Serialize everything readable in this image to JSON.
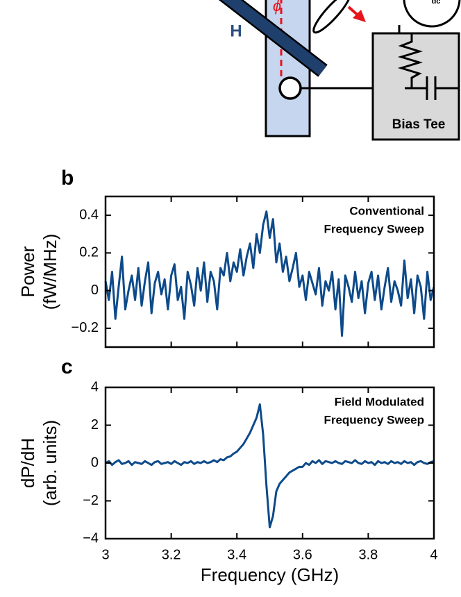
{
  "diagram": {
    "field_label": "H",
    "angle_label": "ϕ",
    "box_label": "Bias Tee",
    "source_label": "dc"
  },
  "chart_data": [
    {
      "type": "line",
      "panel": "b",
      "ylabel": [
        "Power",
        "(fW/MHz)"
      ],
      "annotation": [
        "Conventional",
        "Frequency Sweep"
      ],
      "xlim": [
        3,
        4
      ],
      "xticks": [
        3,
        3.2,
        3.4,
        3.6,
        3.8,
        4
      ],
      "ylim": [
        -0.3,
        0.5
      ],
      "yticks": [
        {
          "value": -0.2,
          "label": "−0.2"
        },
        0,
        0.2,
        0.4
      ],
      "x": [
        3.0,
        3.01,
        3.02,
        3.03,
        3.04,
        3.05,
        3.06,
        3.07,
        3.08,
        3.09,
        3.1,
        3.11,
        3.12,
        3.13,
        3.14,
        3.15,
        3.16,
        3.17,
        3.18,
        3.19,
        3.2,
        3.21,
        3.22,
        3.23,
        3.24,
        3.25,
        3.26,
        3.27,
        3.28,
        3.29,
        3.3,
        3.31,
        3.32,
        3.33,
        3.34,
        3.35,
        3.36,
        3.37,
        3.38,
        3.39,
        3.4,
        3.41,
        3.42,
        3.43,
        3.44,
        3.45,
        3.46,
        3.47,
        3.48,
        3.49,
        3.5,
        3.51,
        3.52,
        3.53,
        3.54,
        3.55,
        3.56,
        3.57,
        3.58,
        3.59,
        3.6,
        3.61,
        3.62,
        3.63,
        3.64,
        3.65,
        3.66,
        3.67,
        3.68,
        3.69,
        3.7,
        3.71,
        3.72,
        3.73,
        3.74,
        3.75,
        3.76,
        3.77,
        3.78,
        3.79,
        3.8,
        3.81,
        3.82,
        3.83,
        3.84,
        3.85,
        3.86,
        3.87,
        3.88,
        3.89,
        3.9,
        3.91,
        3.92,
        3.93,
        3.94,
        3.95,
        3.96,
        3.97,
        3.98,
        3.99,
        4.0
      ],
      "series": [
        {
          "color": "#0d4a8a",
          "values": [
            0.05,
            -0.05,
            0.1,
            -0.15,
            0.02,
            0.18,
            -0.1,
            0.0,
            0.08,
            -0.05,
            0.12,
            -0.08,
            0.05,
            0.15,
            -0.12,
            0.04,
            0.1,
            -0.02,
            0.06,
            -0.1,
            0.08,
            0.14,
            -0.05,
            0.02,
            -0.15,
            0.1,
            0.03,
            -0.08,
            0.12,
            0.0,
            0.15,
            -0.06,
            0.1,
            0.05,
            -0.1,
            0.12,
            0.08,
            0.2,
            0.05,
            0.15,
            0.1,
            0.22,
            0.08,
            0.18,
            0.25,
            0.12,
            0.3,
            0.2,
            0.35,
            0.42,
            0.28,
            0.38,
            0.15,
            0.25,
            0.1,
            0.18,
            0.05,
            0.12,
            0.2,
            0.02,
            0.08,
            -0.05,
            0.1,
            0.04,
            -0.02,
            0.12,
            -0.08,
            0.05,
            0.0,
            0.1,
            -0.1,
            0.06,
            -0.24,
            0.08,
            0.02,
            -0.06,
            0.1,
            -0.04,
            0.05,
            -0.12,
            0.04,
            0.1,
            -0.05,
            0.08,
            -0.1,
            0.02,
            0.12,
            -0.06,
            0.05,
            0.0,
            -0.08,
            0.16,
            -0.04,
            0.06,
            -0.12,
            0.08,
            0.02,
            -0.15,
            0.1,
            -0.05,
            0.02
          ]
        }
      ]
    },
    {
      "type": "line",
      "panel": "c",
      "ylabel": [
        "dP/dH",
        "(arb. units)"
      ],
      "xlabel": "Frequency (GHz)",
      "annotation": [
        "Field Modulated",
        "Frequency Sweep"
      ],
      "xlim": [
        3,
        4
      ],
      "xticks": [
        3,
        3.2,
        3.4,
        3.6,
        3.8,
        4
      ],
      "ylim": [
        -4,
        4
      ],
      "yticks": [
        {
          "value": -4,
          "label": "−4"
        },
        {
          "value": -2,
          "label": "−2"
        },
        0,
        2,
        4
      ],
      "x": [
        3.0,
        3.01,
        3.02,
        3.03,
        3.04,
        3.05,
        3.06,
        3.07,
        3.08,
        3.09,
        3.1,
        3.11,
        3.12,
        3.13,
        3.14,
        3.15,
        3.16,
        3.17,
        3.18,
        3.19,
        3.2,
        3.21,
        3.22,
        3.23,
        3.24,
        3.25,
        3.26,
        3.27,
        3.28,
        3.29,
        3.3,
        3.31,
        3.32,
        3.33,
        3.34,
        3.35,
        3.36,
        3.37,
        3.38,
        3.39,
        3.4,
        3.41,
        3.42,
        3.43,
        3.44,
        3.45,
        3.46,
        3.47,
        3.48,
        3.49,
        3.5,
        3.51,
        3.52,
        3.53,
        3.54,
        3.55,
        3.56,
        3.57,
        3.58,
        3.59,
        3.6,
        3.61,
        3.62,
        3.63,
        3.64,
        3.65,
        3.66,
        3.67,
        3.68,
        3.69,
        3.7,
        3.71,
        3.72,
        3.73,
        3.74,
        3.75,
        3.76,
        3.77,
        3.78,
        3.79,
        3.8,
        3.81,
        3.82,
        3.83,
        3.84,
        3.85,
        3.86,
        3.87,
        3.88,
        3.89,
        3.9,
        3.91,
        3.92,
        3.93,
        3.94,
        3.95,
        3.96,
        3.97,
        3.98,
        3.99,
        4.0
      ],
      "series": [
        {
          "color": "#0d4a8a",
          "values": [
            0,
            0.1,
            -0.1,
            0.05,
            0.15,
            -0.05,
            0,
            0.1,
            -0.1,
            0.05,
            0,
            -0.05,
            0.1,
            0,
            -0.1,
            0.05,
            0.1,
            -0.05,
            0,
            0.05,
            -0.05,
            0.1,
            0,
            -0.1,
            0.05,
            0,
            0.1,
            -0.05,
            0.05,
            0,
            0.1,
            0,
            0.05,
            0.15,
            0.05,
            0.2,
            0.15,
            0.3,
            0.35,
            0.5,
            0.6,
            0.8,
            1.0,
            1.3,
            1.6,
            2.0,
            2.4,
            3.1,
            1.5,
            -1.2,
            -3.4,
            -2.8,
            -1.5,
            -1.1,
            -0.9,
            -0.7,
            -0.5,
            -0.4,
            -0.3,
            -0.2,
            -0.2,
            0,
            -0.1,
            0.1,
            0,
            0.15,
            -0.05,
            0.1,
            0.05,
            0,
            0.1,
            0,
            -0.05,
            0.1,
            0.05,
            0,
            0.15,
            0,
            -0.05,
            0.1,
            0,
            0.05,
            -0.1,
            0.1,
            0,
            0.05,
            -0.05,
            0.1,
            0,
            0.05,
            -0.05,
            0.1,
            0,
            0.05,
            -0.1,
            0.05,
            0.1,
            0,
            -0.05,
            0.05,
            0.1
          ]
        }
      ]
    }
  ]
}
